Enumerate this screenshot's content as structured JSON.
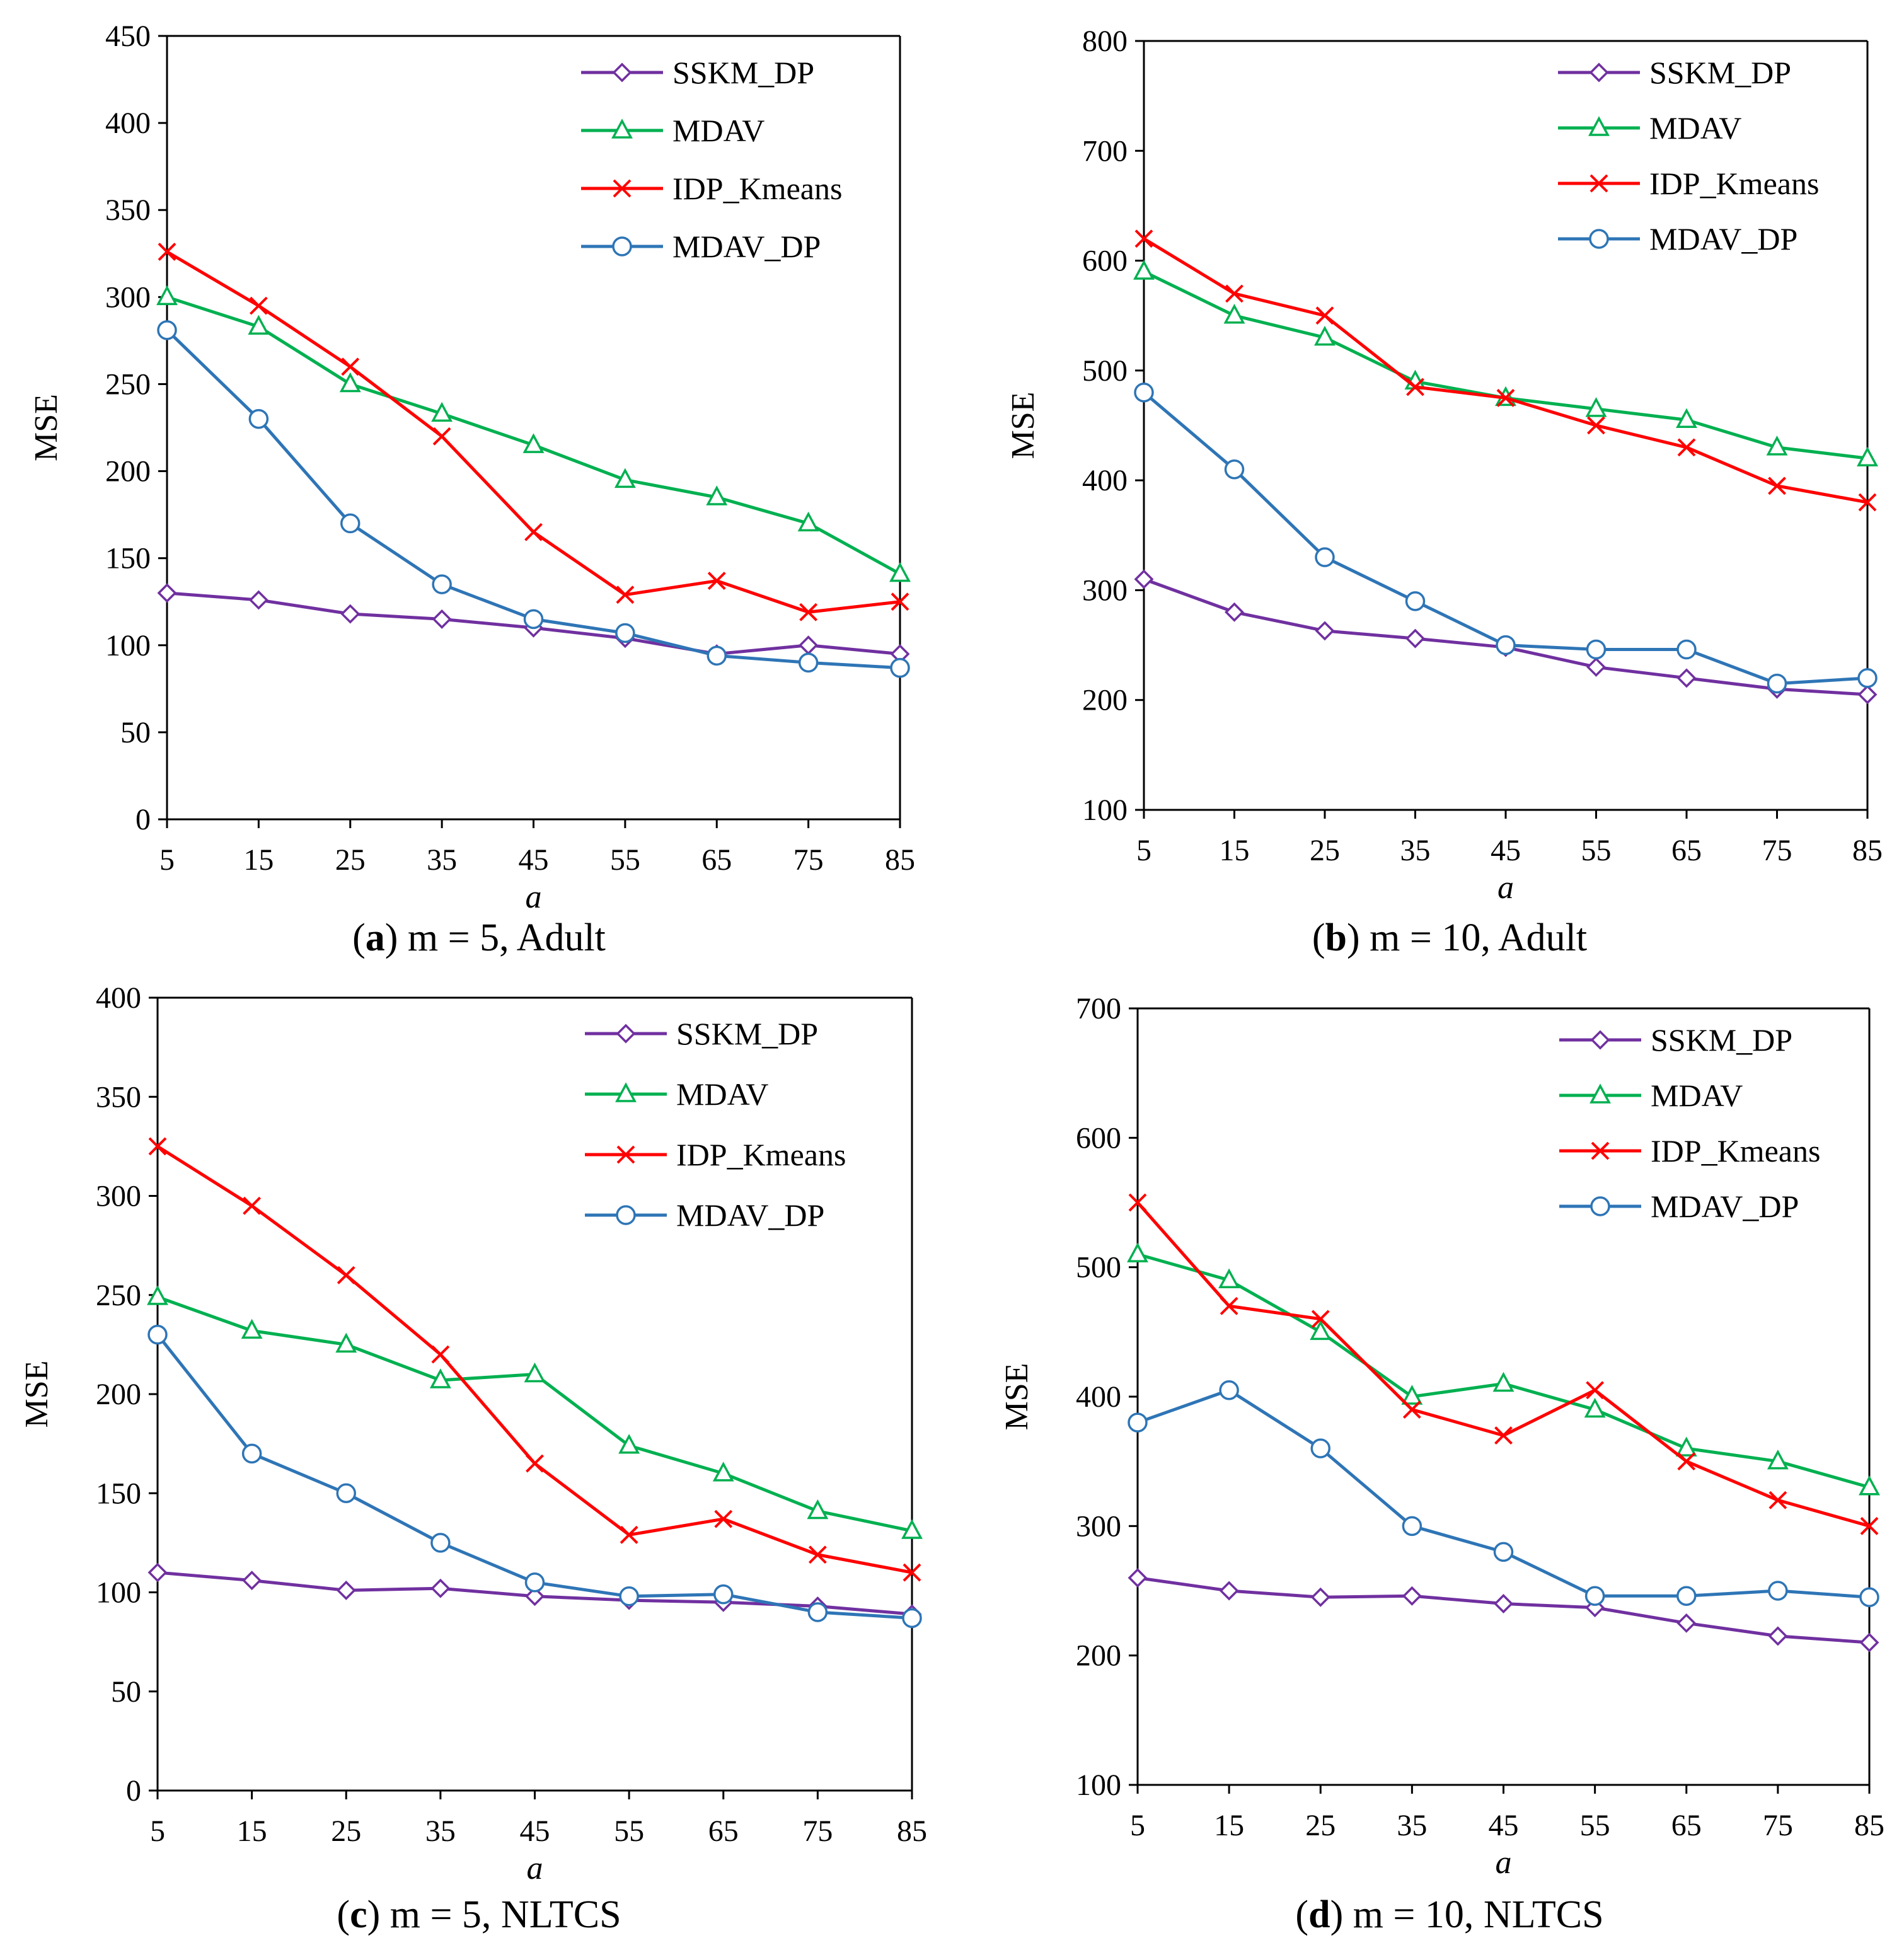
{
  "chart_data": [
    {
      "type": "line",
      "caption": {
        "letter": "a",
        "text": "m = 5, Adult"
      },
      "xlabel": "a",
      "ylabel": "MSE",
      "x": [
        5,
        15,
        25,
        35,
        45,
        55,
        65,
        75,
        85
      ],
      "ylim": [
        0,
        450
      ],
      "yticks": [
        0,
        50,
        100,
        150,
        200,
        250,
        300,
        350,
        400,
        450
      ],
      "legend_position": "top-right",
      "series": [
        {
          "name": "SSKM_DP",
          "marker": "diamond",
          "color": "#7030A0",
          "values": [
            130,
            126,
            118,
            115,
            110,
            104,
            95,
            100,
            95
          ]
        },
        {
          "name": "MDAV",
          "marker": "triangle",
          "color": "#00B050",
          "values": [
            300,
            283,
            250,
            233,
            215,
            195,
            185,
            170,
            141
          ]
        },
        {
          "name": "IDP_Kmeans",
          "marker": "cross",
          "color": "#FF0000",
          "values": [
            326,
            295,
            260,
            220,
            165,
            129,
            137,
            119,
            125
          ]
        },
        {
          "name": "MDAV_DP",
          "marker": "circle",
          "color": "#2E75B6",
          "values": [
            281,
            230,
            170,
            135,
            115,
            107,
            94,
            90,
            87
          ]
        }
      ]
    },
    {
      "type": "line",
      "caption": {
        "letter": "b",
        "text": "m = 10, Adult"
      },
      "xlabel": "a",
      "ylabel": "MSE",
      "x": [
        5,
        15,
        25,
        35,
        45,
        55,
        65,
        75,
        85
      ],
      "ylim": [
        100,
        800
      ],
      "yticks": [
        100,
        200,
        300,
        400,
        500,
        600,
        700,
        800
      ],
      "legend_position": "top-right",
      "series": [
        {
          "name": "SSKM_DP",
          "marker": "diamond",
          "color": "#7030A0",
          "values": [
            310,
            280,
            263,
            256,
            248,
            230,
            220,
            210,
            205
          ]
        },
        {
          "name": "MDAV",
          "marker": "triangle",
          "color": "#00B050",
          "values": [
            590,
            550,
            530,
            490,
            475,
            465,
            455,
            430,
            420
          ]
        },
        {
          "name": "IDP_Kmeans",
          "marker": "cross",
          "color": "#FF0000",
          "values": [
            620,
            570,
            550,
            485,
            475,
            450,
            430,
            395,
            380
          ]
        },
        {
          "name": "MDAV_DP",
          "marker": "circle",
          "color": "#2E75B6",
          "values": [
            480,
            410,
            330,
            290,
            250,
            246,
            246,
            215,
            220
          ]
        }
      ]
    },
    {
      "type": "line",
      "caption": {
        "letter": "c",
        "text": "m = 5, NLTCS"
      },
      "xlabel": "a",
      "ylabel": "MSE",
      "x": [
        5,
        15,
        25,
        35,
        45,
        55,
        65,
        75,
        85
      ],
      "ylim": [
        0,
        400
      ],
      "yticks": [
        0,
        50,
        100,
        150,
        200,
        250,
        300,
        350,
        400
      ],
      "legend_position": "top-right",
      "series": [
        {
          "name": "SSKM_DP",
          "marker": "diamond",
          "color": "#7030A0",
          "values": [
            110,
            106,
            101,
            102,
            98,
            96,
            95,
            93,
            89
          ]
        },
        {
          "name": "MDAV",
          "marker": "triangle",
          "color": "#00B050",
          "values": [
            249,
            232,
            225,
            207,
            210,
            174,
            160,
            141,
            131
          ]
        },
        {
          "name": "IDP_Kmeans",
          "marker": "cross",
          "color": "#FF0000",
          "values": [
            325,
            295,
            260,
            220,
            165,
            129,
            137,
            119,
            110
          ]
        },
        {
          "name": "MDAV_DP",
          "marker": "circle",
          "color": "#2E75B6",
          "values": [
            230,
            170,
            150,
            125,
            105,
            98,
            99,
            90,
            87
          ]
        }
      ]
    },
    {
      "type": "line",
      "caption": {
        "letter": "d",
        "text": "m = 10, NLTCS"
      },
      "xlabel": "a",
      "ylabel": "MSE",
      "x": [
        5,
        15,
        25,
        35,
        45,
        55,
        65,
        75,
        85
      ],
      "ylim": [
        100,
        700
      ],
      "yticks": [
        100,
        200,
        300,
        400,
        500,
        600,
        700
      ],
      "legend_position": "top-right",
      "series": [
        {
          "name": "SSKM_DP",
          "marker": "diamond",
          "color": "#7030A0",
          "values": [
            260,
            250,
            245,
            246,
            240,
            237,
            225,
            215,
            210
          ]
        },
        {
          "name": "MDAV",
          "marker": "triangle",
          "color": "#00B050",
          "values": [
            510,
            490,
            450,
            400,
            410,
            390,
            360,
            350,
            330
          ]
        },
        {
          "name": "IDP_Kmeans",
          "marker": "cross",
          "color": "#FF0000",
          "values": [
            550,
            470,
            460,
            390,
            370,
            405,
            350,
            320,
            300
          ]
        },
        {
          "name": "MDAV_DP",
          "marker": "circle",
          "color": "#2E75B6",
          "values": [
            380,
            405,
            360,
            300,
            280,
            246,
            246,
            250,
            245
          ]
        }
      ]
    }
  ]
}
